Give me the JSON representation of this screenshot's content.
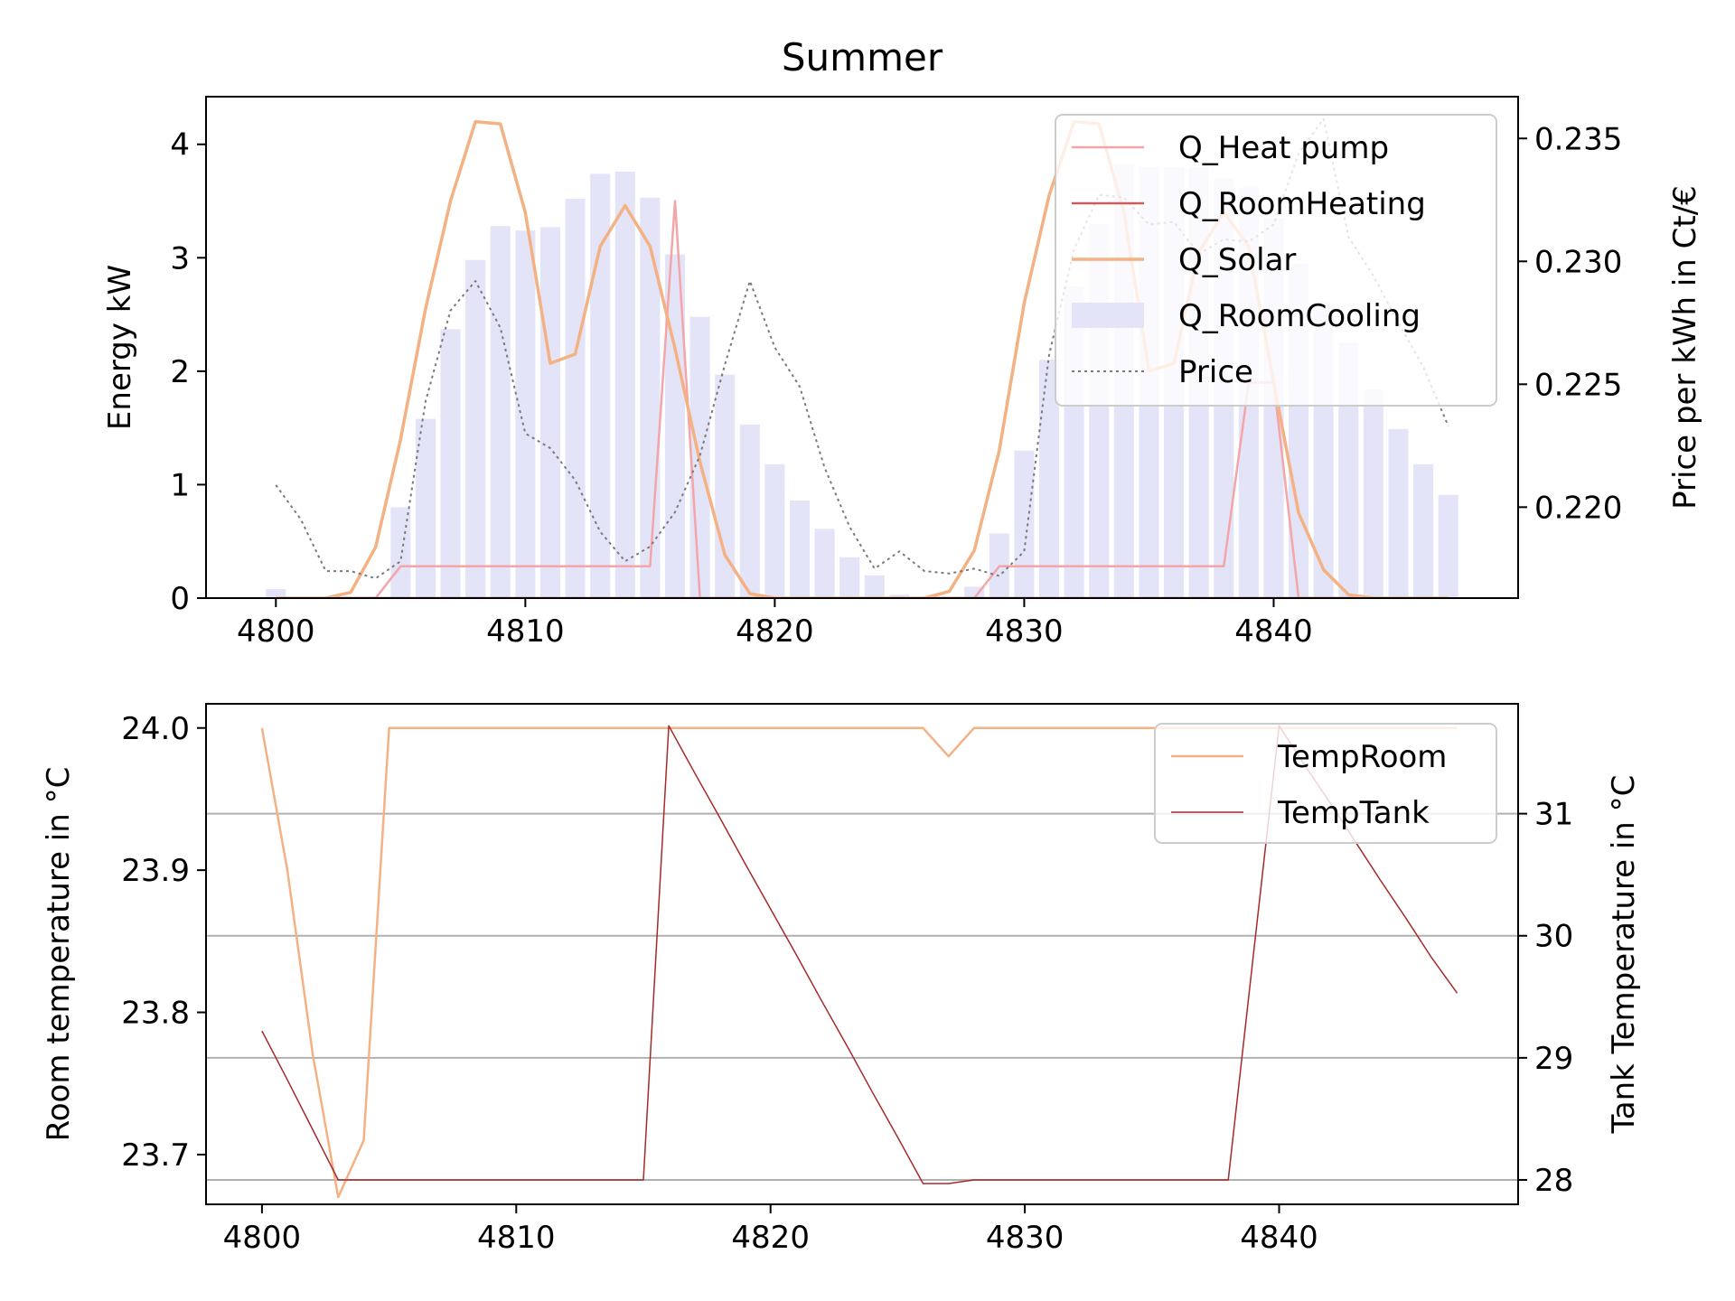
{
  "chart_data": [
    {
      "type": "bar+line",
      "title": "Summer",
      "ylabel": "Energy kW",
      "y2label": "Price per kWh in Ct/€",
      "xlim": [
        4797.2,
        4849.8
      ],
      "ylim": [
        0,
        4.42
      ],
      "y2lim": [
        0.2163,
        0.2367
      ],
      "x_ticks": [
        "4800",
        "4810",
        "4820",
        "4830",
        "4840"
      ],
      "y_ticks": [
        "0",
        "1",
        "2",
        "3",
        "4"
      ],
      "y2_ticks": [
        "0.220",
        "0.225",
        "0.230",
        "0.235"
      ],
      "legend_position": "upper right",
      "x": [
        4800,
        4801,
        4802,
        4803,
        4804,
        4805,
        4806,
        4807,
        4808,
        4809,
        4810,
        4811,
        4812,
        4813,
        4814,
        4815,
        4816,
        4817,
        4818,
        4819,
        4820,
        4821,
        4822,
        4823,
        4824,
        4825,
        4826,
        4827,
        4828,
        4829,
        4830,
        4831,
        4832,
        4833,
        4834,
        4835,
        4836,
        4837,
        4838,
        4839,
        4840,
        4841,
        4842,
        4843,
        4844,
        4845,
        4846,
        4847
      ],
      "series": [
        {
          "name": "Q_Heat pump",
          "kind": "line",
          "color": "#f4a5a8",
          "values": [
            0,
            0,
            0,
            0,
            0,
            0.28,
            0.28,
            0.28,
            0.28,
            0.28,
            0.28,
            0.28,
            0.28,
            0.28,
            0.28,
            0.28,
            3.5,
            0,
            0,
            0,
            0,
            0,
            0,
            0,
            0,
            0,
            0,
            0,
            0,
            0.28,
            0.28,
            0.28,
            0.28,
            0.28,
            0.28,
            0.28,
            0.28,
            0.28,
            0.28,
            1.9,
            1.9,
            0,
            0,
            0,
            0,
            0,
            0,
            0
          ]
        },
        {
          "name": "Q_RoomHeating",
          "kind": "line",
          "color": "#cd5c5c",
          "values": [
            0,
            0,
            0,
            0,
            0,
            0,
            0,
            0,
            0,
            0,
            0,
            0,
            0,
            0,
            0,
            0,
            0,
            0,
            0,
            0,
            0,
            0,
            0,
            0,
            0,
            0,
            0,
            0,
            0,
            0,
            0,
            0,
            0,
            0,
            0,
            0,
            0,
            0,
            0,
            0,
            0,
            0,
            0,
            0,
            0,
            0,
            0,
            0
          ]
        },
        {
          "name": "Q_Solar",
          "kind": "line",
          "color": "#f4b183",
          "values": [
            0,
            0,
            0,
            0.05,
            0.45,
            1.4,
            2.55,
            3.5,
            4.2,
            4.18,
            3.4,
            2.07,
            2.15,
            3.1,
            3.46,
            3.1,
            2.2,
            1.2,
            0.38,
            0.04,
            0,
            0,
            0,
            0,
            0,
            0,
            0,
            0.06,
            0.42,
            1.3,
            2.6,
            3.55,
            4.2,
            4.18,
            3.4,
            2.0,
            2.07,
            3.05,
            3.4,
            3.1,
            1.9,
            0.75,
            0.25,
            0.03,
            0,
            0,
            0,
            0
          ]
        },
        {
          "name": "Q_RoomCooling",
          "kind": "bar",
          "color": "#e4e4f8",
          "values": [
            0.08,
            0,
            0,
            0,
            0,
            0.8,
            1.58,
            2.37,
            2.98,
            3.28,
            3.24,
            3.27,
            3.52,
            3.74,
            3.76,
            3.53,
            3.03,
            2.48,
            1.97,
            1.53,
            1.18,
            0.86,
            0.61,
            0.36,
            0.2,
            0.03,
            0,
            0,
            0.1,
            0.57,
            1.3,
            2.1,
            2.75,
            3.3,
            3.82,
            3.8,
            3.8,
            3.8,
            3.7,
            3.62,
            3.35,
            2.95,
            2.6,
            2.25,
            1.84,
            1.49,
            1.18,
            0.91
          ]
        },
        {
          "name": "Price",
          "kind": "line",
          "axis": "right",
          "color": "#7a7a7a",
          "values": [
            0.2209,
            0.2195,
            0.2174,
            0.2174,
            0.2171,
            0.2178,
            0.2243,
            0.228,
            0.2292,
            0.2273,
            0.223,
            0.2224,
            0.2211,
            0.219,
            0.2178,
            0.2184,
            0.2198,
            0.2221,
            0.2258,
            0.2292,
            0.2265,
            0.2249,
            0.2216,
            0.2192,
            0.2175,
            0.2182,
            0.2174,
            0.2173,
            0.2175,
            0.2172,
            0.2182,
            0.2262,
            0.2305,
            0.2327,
            0.2326,
            0.2315,
            0.2316,
            0.2303,
            0.2309,
            0.2308,
            0.2315,
            0.2344,
            0.2358,
            0.231,
            0.2294,
            0.2275,
            0.2257,
            0.2233
          ]
        }
      ]
    },
    {
      "type": "line",
      "title": "",
      "ylabel": "Room temperature in °C",
      "y2label": "Tank Temperature in °C",
      "xlim": [
        4797.8,
        4849.4
      ],
      "ylim": [
        23.665,
        24.017
      ],
      "y2lim": [
        27.8,
        31.9
      ],
      "x_ticks": [
        "4800",
        "4810",
        "4820",
        "4830",
        "4840"
      ],
      "y_ticks": [
        "23.7",
        "23.8",
        "23.9",
        "24.0"
      ],
      "y2_ticks": [
        "28",
        "29",
        "30",
        "31"
      ],
      "grid": "horizontal on right axis",
      "legend_position": "upper right",
      "x": [
        4800,
        4801,
        4802,
        4803,
        4804,
        4805,
        4806,
        4807,
        4808,
        4809,
        4810,
        4811,
        4812,
        4813,
        4814,
        4815,
        4816,
        4817,
        4818,
        4819,
        4820,
        4821,
        4822,
        4823,
        4824,
        4825,
        4826,
        4827,
        4828,
        4829,
        4830,
        4831,
        4832,
        4833,
        4834,
        4835,
        4836,
        4837,
        4838,
        4839,
        4840,
        4841,
        4842,
        4843,
        4844,
        4845,
        4846,
        4847
      ],
      "series": [
        {
          "name": "TempRoom",
          "axis": "left",
          "color": "#f4b183",
          "values": [
            24.0,
            23.9,
            23.77,
            23.67,
            23.71,
            24.0,
            24.0,
            24.0,
            24.0,
            24.0,
            24.0,
            24.0,
            24.0,
            24.0,
            24.0,
            24.0,
            24.0,
            24.0,
            24.0,
            24.0,
            24.0,
            24.0,
            24.0,
            24.0,
            24.0,
            24.0,
            24.0,
            23.98,
            24.0,
            24.0,
            24.0,
            24.0,
            24.0,
            24.0,
            24.0,
            24.0,
            24.0,
            24.0,
            24.0,
            24.0,
            24.0,
            24.0,
            24.0,
            24.0,
            24.0,
            24.0,
            24.0,
            24.0
          ]
        },
        {
          "name": "TempTank",
          "axis": "right",
          "color": "#a52a2a",
          "values": [
            29.22,
            28.82,
            28.41,
            28.0,
            28.0,
            28.0,
            28.0,
            28.0,
            28.0,
            28.0,
            28.0,
            28.0,
            28.0,
            28.0,
            28.0,
            28.0,
            31.72,
            31.34,
            30.97,
            30.59,
            30.22,
            29.85,
            29.47,
            29.1,
            28.72,
            28.35,
            27.97,
            27.97,
            28.0,
            28.0,
            28.0,
            28.0,
            28.0,
            28.0,
            28.0,
            28.0,
            28.0,
            28.0,
            28.0,
            29.86,
            31.72,
            31.4,
            31.09,
            30.77,
            30.45,
            30.14,
            29.82,
            29.53
          ]
        }
      ]
    }
  ]
}
